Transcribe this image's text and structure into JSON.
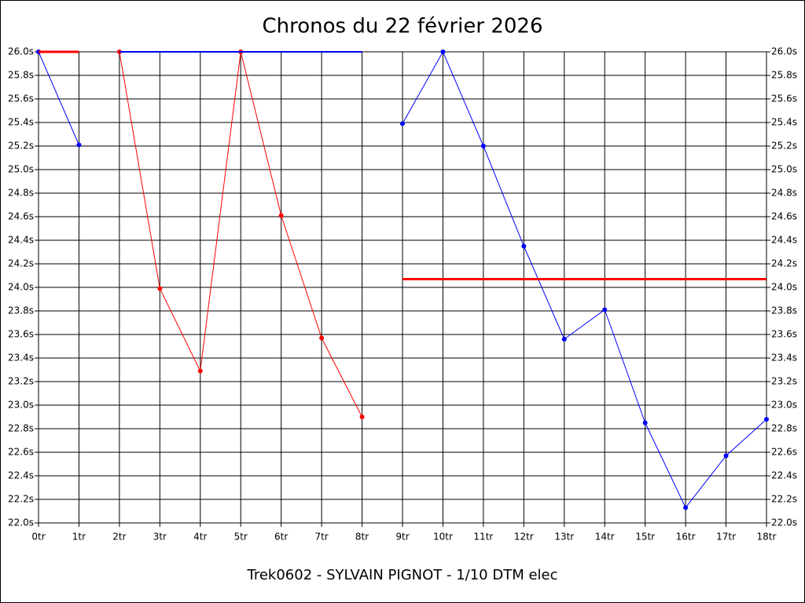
{
  "chart_data": {
    "type": "line",
    "title": "Chronos du 22 février 2026",
    "xlabel": "Trek0602 - SYLVAIN PIGNOT - 1/10 DTM elec",
    "categories": [
      "0tr",
      "1tr",
      "2tr",
      "3tr",
      "4tr",
      "5tr",
      "6tr",
      "7tr",
      "8tr",
      "9tr",
      "10tr",
      "11tr",
      "12tr",
      "13tr",
      "14tr",
      "15tr",
      "16tr",
      "17tr",
      "18tr"
    ],
    "series": [
      {
        "color": "#0000ff",
        "width": 1,
        "markers": true,
        "values": [
          26.0,
          25.21,
          null,
          null,
          null,
          null,
          null,
          null,
          null,
          25.39,
          26.0,
          25.2,
          24.35,
          23.56,
          23.81,
          22.85,
          22.13,
          22.57,
          22.88
        ]
      },
      {
        "color": "#ff0000",
        "width": 1,
        "markers": true,
        "values": [
          null,
          null,
          26.0,
          23.99,
          23.29,
          26.0,
          24.61,
          23.57,
          22.9,
          null,
          null,
          null,
          null,
          null,
          null,
          null,
          null,
          null,
          null
        ]
      },
      {
        "color": "#0000ff",
        "width": 2,
        "markers": false,
        "values": [
          null,
          null,
          26.0,
          26.0,
          26.0,
          26.0,
          26.0,
          26.0,
          26.0,
          null,
          null,
          null,
          null,
          null,
          null,
          null,
          null,
          null,
          null
        ]
      },
      {
        "color": "#ff0000",
        "width": 3,
        "markers": false,
        "values": [
          26.0,
          26.0,
          null,
          null,
          null,
          null,
          null,
          null,
          null,
          24.07,
          24.07,
          24.07,
          24.07,
          24.07,
          24.07,
          24.07,
          24.07,
          24.07,
          24.07
        ]
      }
    ],
    "ylim": [
      22.0,
      26.0
    ],
    "yticks": [
      {
        "value": 22.0,
        "label": "22.0s"
      },
      {
        "value": 22.2,
        "label": "22.2s"
      },
      {
        "value": 22.4,
        "label": "22.4s"
      },
      {
        "value": 22.6,
        "label": "22.6s"
      },
      {
        "value": 22.8,
        "label": "22.8s"
      },
      {
        "value": 23.0,
        "label": "23.0s"
      },
      {
        "value": 23.2,
        "label": "23.2s"
      },
      {
        "value": 23.4,
        "label": "23.4s"
      },
      {
        "value": 23.6,
        "label": "23.6s"
      },
      {
        "value": 23.8,
        "label": "23.8s"
      },
      {
        "value": 24.0,
        "label": "24.0s"
      },
      {
        "value": 24.2,
        "label": "24.2s"
      },
      {
        "value": 24.4,
        "label": "24.4s"
      },
      {
        "value": 24.6,
        "label": "24.6s"
      },
      {
        "value": 24.8,
        "label": "24.8s"
      },
      {
        "value": 25.0,
        "label": "25.0s"
      },
      {
        "value": 25.2,
        "label": "25.2s"
      },
      {
        "value": 25.4,
        "label": "25.4s"
      },
      {
        "value": 25.6,
        "label": "25.6s"
      },
      {
        "value": 25.8,
        "label": "25.8s"
      },
      {
        "value": 26.0,
        "label": "26.0s"
      }
    ],
    "grid": true
  }
}
